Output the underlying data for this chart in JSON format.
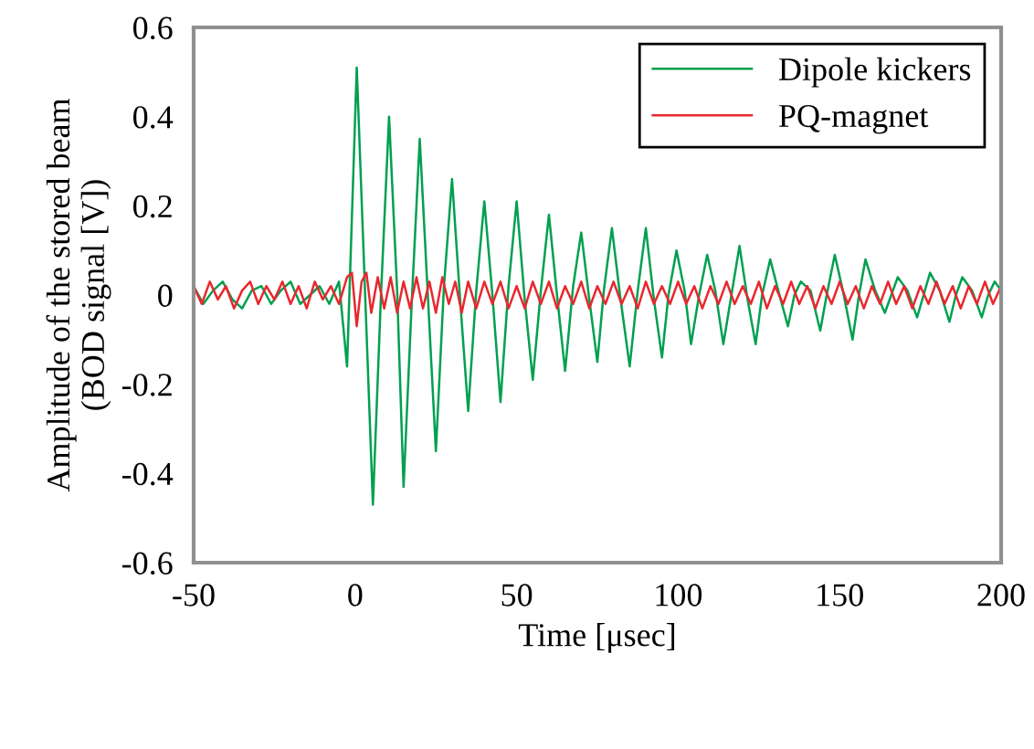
{
  "chart_data": {
    "type": "line",
    "xlabel": "Time [μsec]",
    "ylabel": "Amplitude of the stored beam\n(BOD signal [V])",
    "xlim": [
      -50,
      200
    ],
    "ylim": [
      -0.6,
      0.6
    ],
    "xticks": [
      -50,
      0,
      50,
      100,
      150,
      200
    ],
    "yticks": [
      -0.6,
      -0.4,
      -0.2,
      0,
      0.2,
      0.4,
      0.6
    ],
    "grid": false,
    "legend": "top right",
    "marker": "none",
    "line_style": "solid",
    "series": [
      {
        "name": "Dipole kickers",
        "color": "#00a050",
        "x": [
          -50,
          -47,
          -44,
          -41,
          -38,
          -35,
          -32,
          -29,
          -26,
          -23,
          -20,
          -17,
          -14,
          -11,
          -8,
          -5,
          -2.5,
          0.5,
          3,
          5.5,
          8,
          10.5,
          13,
          15,
          17.5,
          20,
          22.5,
          25,
          27.5,
          30,
          32.5,
          35,
          37.5,
          40,
          42.5,
          45,
          47.5,
          50,
          52.5,
          55,
          57.5,
          60,
          62.5,
          65,
          67.5,
          70,
          72.5,
          75,
          77,
          79.5,
          82,
          85,
          87.5,
          90,
          92.5,
          95,
          97,
          99.5,
          102,
          104,
          106.5,
          109,
          111.5,
          114,
          116.5,
          119,
          121.5,
          124,
          126,
          128.5,
          131,
          134,
          136,
          138,
          141,
          144,
          146,
          148.5,
          151,
          154,
          156,
          158,
          161,
          164,
          166,
          168,
          171,
          174,
          176,
          178,
          181,
          184,
          186,
          188,
          191,
          194,
          196,
          198,
          200
        ],
        "values": [
          0.02,
          -0.02,
          0.01,
          0.03,
          -0.01,
          -0.03,
          0.01,
          0.02,
          -0.02,
          0.01,
          0.03,
          -0.02,
          0.0,
          0.02,
          -0.02,
          0.03,
          -0.16,
          0.51,
          0.02,
          -0.47,
          0.0,
          0.4,
          0.01,
          -0.43,
          -0.02,
          0.35,
          0.0,
          -0.35,
          0.02,
          0.26,
          -0.01,
          -0.26,
          0.01,
          0.21,
          0.0,
          -0.24,
          0.02,
          0.21,
          -0.01,
          -0.19,
          0.01,
          0.18,
          0.0,
          -0.17,
          0.02,
          0.14,
          -0.01,
          -0.15,
          0.01,
          0.15,
          0.0,
          -0.16,
          0.01,
          0.15,
          -0.01,
          -0.14,
          0.0,
          0.1,
          0.01,
          -0.11,
          0.0,
          0.09,
          0.01,
          -0.11,
          0.0,
          0.11,
          -0.01,
          -0.11,
          0.0,
          0.08,
          0.01,
          -0.07,
          0.0,
          0.03,
          0.01,
          -0.08,
          0.0,
          0.09,
          0.01,
          -0.1,
          0.0,
          0.08,
          0.01,
          -0.04,
          0.0,
          0.04,
          0.01,
          -0.05,
          0.0,
          0.05,
          0.01,
          -0.06,
          0.0,
          0.04,
          0.01,
          -0.05,
          0.0,
          0.03,
          0.01
        ]
      },
      {
        "name": "PQ-magnet",
        "color": "#e8282e",
        "x": [
          -50,
          -47.5,
          -45,
          -42.5,
          -40,
          -37.5,
          -35,
          -32.5,
          -30,
          -27.5,
          -25,
          -22.5,
          -20,
          -17.5,
          -15,
          -12.5,
          -10,
          -7.5,
          -5,
          -2.5,
          -1,
          0.5,
          2,
          3.5,
          5,
          7,
          9,
          11,
          13,
          15,
          17,
          19,
          21,
          23,
          25,
          27,
          29,
          31,
          33,
          35,
          37.5,
          40,
          42.5,
          45,
          47.5,
          50,
          52.5,
          55,
          57.5,
          60,
          62.5,
          65,
          67.5,
          70,
          72.5,
          75,
          77.5,
          80,
          82.5,
          85,
          87.5,
          90,
          92.5,
          95,
          97.5,
          100,
          102.5,
          105,
          107.5,
          110,
          112.5,
          115,
          117.5,
          120,
          122.5,
          125,
          127.5,
          130,
          132.5,
          135,
          137.5,
          140,
          142.5,
          145,
          147.5,
          150,
          152.5,
          155,
          157.5,
          160,
          162.5,
          165,
          167.5,
          170,
          172.5,
          175,
          177.5,
          180,
          182.5,
          185,
          187.5,
          190,
          192.5,
          195,
          197.5,
          200
        ],
        "values": [
          0.02,
          -0.02,
          0.03,
          -0.01,
          0.02,
          -0.03,
          0.01,
          0.03,
          -0.02,
          0.02,
          -0.01,
          0.03,
          -0.02,
          0.02,
          -0.03,
          0.03,
          -0.01,
          0.02,
          -0.02,
          0.04,
          0.05,
          -0.07,
          0.03,
          0.05,
          -0.04,
          0.04,
          -0.03,
          0.04,
          -0.04,
          0.03,
          -0.03,
          0.04,
          -0.03,
          0.03,
          -0.04,
          0.04,
          -0.02,
          0.03,
          -0.04,
          0.03,
          -0.03,
          0.03,
          -0.02,
          0.03,
          -0.03,
          0.02,
          -0.03,
          0.03,
          -0.02,
          0.03,
          -0.03,
          0.02,
          -0.02,
          0.03,
          -0.03,
          0.02,
          -0.02,
          0.03,
          -0.02,
          0.02,
          -0.03,
          0.03,
          -0.02,
          0.02,
          -0.02,
          0.03,
          -0.02,
          0.02,
          -0.03,
          0.02,
          -0.02,
          0.03,
          -0.02,
          0.02,
          -0.02,
          0.03,
          -0.03,
          0.02,
          -0.02,
          0.03,
          -0.02,
          0.02,
          -0.03,
          0.02,
          -0.02,
          0.03,
          -0.02,
          0.02,
          -0.03,
          0.02,
          -0.02,
          0.03,
          -0.02,
          0.02,
          -0.03,
          0.02,
          -0.02,
          0.03,
          -0.02,
          0.02,
          -0.03,
          0.02,
          -0.02,
          0.03,
          -0.02,
          0.02
        ]
      }
    ]
  }
}
